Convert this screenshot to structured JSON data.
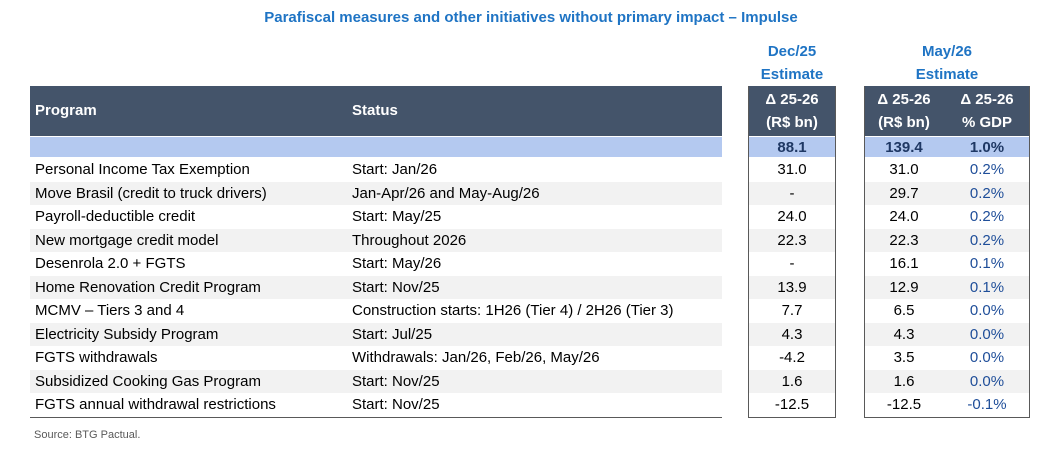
{
  "title": "Parafiscal measures and other initiatives without primary impact – Impulse",
  "column_groups": [
    {
      "label": "Dec/25",
      "sublabel": "Estimate"
    },
    {
      "label": "May/26",
      "sublabel": "Estimate"
    }
  ],
  "headers": [
    "Program",
    "Status",
    [
      "Δ 25-26",
      "(R$ bn)"
    ],
    [
      "Δ 25-26",
      "(R$ bn)"
    ],
    [
      "Δ 25-26",
      "% GDP"
    ]
  ],
  "total_row": [
    "88.1",
    "139.4",
    "1.0%"
  ],
  "rows": [
    [
      "Personal Income Tax Exemption",
      "Start: Jan/26",
      "31.0",
      "31.0",
      "0.2%"
    ],
    [
      "Move Brasil (credit to truck drivers)",
      "Jan-Apr/26 and May-Aug/26",
      "-",
      "29.7",
      "0.2%"
    ],
    [
      "Payroll-deductible credit",
      "Start: May/25",
      "24.0",
      "24.0",
      "0.2%"
    ],
    [
      "New mortgage credit model",
      "Throughout 2026",
      "22.3",
      "22.3",
      "0.2%"
    ],
    [
      "Desenrola 2.0 + FGTS",
      "Start: May/26",
      "-",
      "16.1",
      "0.1%"
    ],
    [
      "Home Renovation Credit Program",
      "Start: Nov/25",
      "13.9",
      "12.9",
      "0.1%"
    ],
    [
      "MCMV – Tiers 3 and 4",
      "Construction starts: 1H26 (Tier 4) / 2H26 (Tier 3)",
      "7.7",
      "6.5",
      "0.0%"
    ],
    [
      "Electricity Subsidy Program",
      "Start: Jul/25",
      "4.3",
      "4.3",
      "0.0%"
    ],
    [
      "FGTS withdrawals",
      "Withdrawals: Jan/26, Feb/26, May/26",
      "-4.2",
      "3.5",
      "0.0%"
    ],
    [
      "Subsidized Cooking Gas Program",
      "Start: Nov/25",
      "1.6",
      "1.6",
      "0.0%"
    ],
    [
      "FGTS annual withdrawal restrictions",
      "Start: Nov/25",
      "-12.5",
      "-12.5",
      "-0.1%"
    ]
  ],
  "source": "Source: BTG Pactual."
}
